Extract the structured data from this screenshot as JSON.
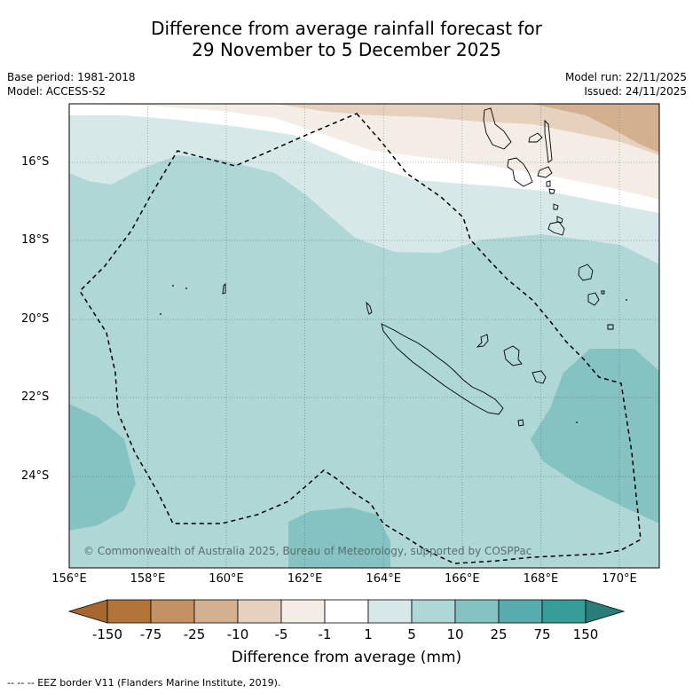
{
  "title": {
    "line1": "Difference from average rainfall forecast for",
    "line2": "29 November to 5 December 2025"
  },
  "meta": {
    "base_period": "Base period: 1981-2018",
    "model": "Model: ACCESS-S2",
    "model_run": "Model run: 22/11/2025",
    "issued": "Issued: 24/11/2025"
  },
  "map": {
    "x_ticks": [
      "156°E",
      "158°E",
      "160°E",
      "162°E",
      "164°E",
      "166°E",
      "168°E",
      "170°E"
    ],
    "y_ticks": [
      "16°S",
      "18°S",
      "20°S",
      "22°S",
      "24°S"
    ],
    "copyright": "© Commonwealth of Australia 2025, Bureau of Meteorology, supported by COSPPac"
  },
  "colorbar": {
    "labels": [
      "-150",
      "-75",
      "-25",
      "-10",
      "-5",
      "-1",
      "1",
      "5",
      "10",
      "25",
      "75",
      "150"
    ],
    "colors": [
      "#a8682d",
      "#b27438",
      "#c39162",
      "#d3b08f",
      "#e6d1be",
      "#f4ede5",
      "#ffffff",
      "#d6e9e8",
      "#aed7d6",
      "#85c3c2",
      "#58acad",
      "#359e98",
      "#2a7e7a"
    ],
    "title": "Difference from average (mm)"
  },
  "legend": {
    "eez": "--  --  -- EEZ border V11 (Flanders Marine Institute, 2019)."
  }
}
